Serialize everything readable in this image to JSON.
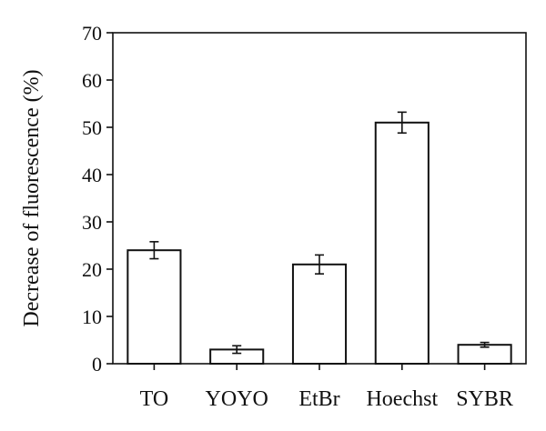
{
  "chart_data": {
    "type": "bar",
    "title": "",
    "xlabel": "",
    "ylabel": "Decrease of fluorescence (%)",
    "ylim": [
      0,
      70
    ],
    "yticks": [
      0,
      10,
      20,
      30,
      40,
      50,
      60,
      70
    ],
    "categories": [
      "TO",
      "YOYO",
      "EtBr",
      "Hoechst",
      "SYBR"
    ],
    "values": [
      24,
      3,
      21,
      51,
      4
    ],
    "errors": [
      1.8,
      0.8,
      2.0,
      2.2,
      0.5
    ],
    "grid": false,
    "legend": "none",
    "colors": {
      "bar_fill": "#ffffff",
      "bar_stroke": "#111111",
      "axis": "#111111"
    }
  }
}
